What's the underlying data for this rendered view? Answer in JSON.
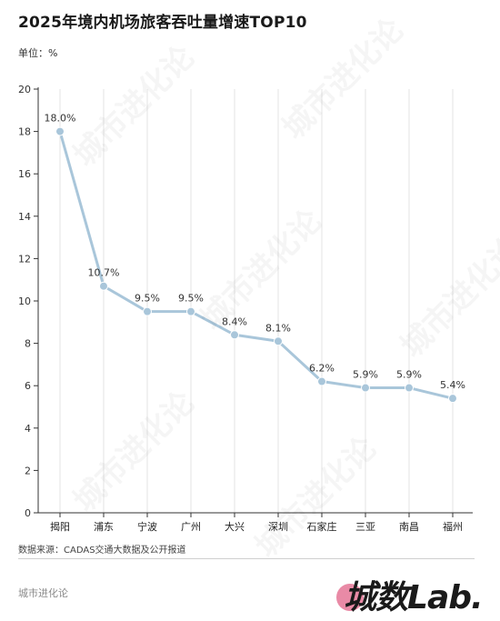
{
  "header": {
    "title": "2025年境内机场旅客吞吐量增速TOP10",
    "unit": "单位：%"
  },
  "footer": {
    "source": "数据来源：CADAS交通大数据及公开报道",
    "brand": "城市进化论",
    "logo_text": "城数Lab."
  },
  "colors": {
    "line": "#a9c6da",
    "point": "#a9c6da",
    "grid": "#e3e3e3",
    "axis": "#333333",
    "logo_accent": "#e98aa6"
  },
  "chart_data": {
    "type": "line",
    "categories": [
      "揭阳",
      "浦东",
      "宁波",
      "广州",
      "大兴",
      "深圳",
      "石家庄",
      "三亚",
      "南昌",
      "福州"
    ],
    "series": [
      {
        "values": [
          18.0,
          10.7,
          9.5,
          9.5,
          8.4,
          8.1,
          6.2,
          5.9,
          5.9,
          5.4
        ],
        "labels": [
          "18.0%",
          "10.7%",
          "9.5%",
          "9.5%",
          "8.4%",
          "8.1%",
          "6.2%",
          "5.9%",
          "5.9%",
          "5.4%"
        ]
      }
    ],
    "ylim": [
      0,
      20
    ],
    "yticks": [
      0,
      2,
      4,
      6,
      8,
      10,
      12,
      14,
      16,
      18,
      20
    ],
    "grid": "vertical"
  }
}
